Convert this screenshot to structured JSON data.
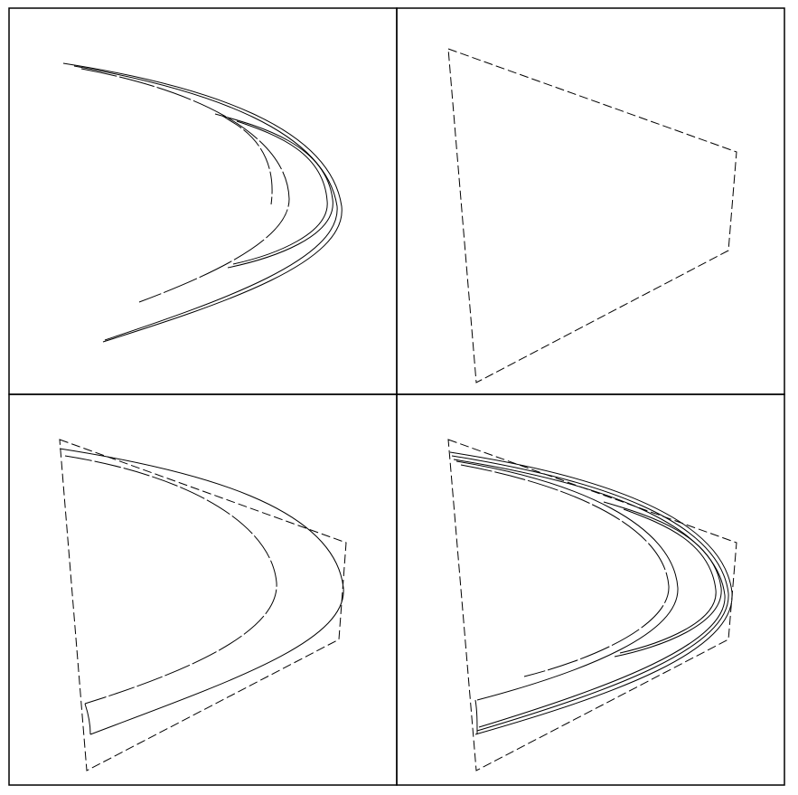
{
  "figure": {
    "panels": [
      {
        "id": "attractor",
        "content": "curve-only"
      },
      {
        "id": "trapping-region",
        "content": "quadrilateral-only"
      },
      {
        "id": "first-iterate",
        "content": "quadrilateral-with-one-fold"
      },
      {
        "id": "overlay",
        "content": "quadrilateral-with-attractor"
      }
    ],
    "colors": {
      "background": "#ffffff",
      "stroke": "#000000"
    },
    "dashed_boundary": true
  }
}
